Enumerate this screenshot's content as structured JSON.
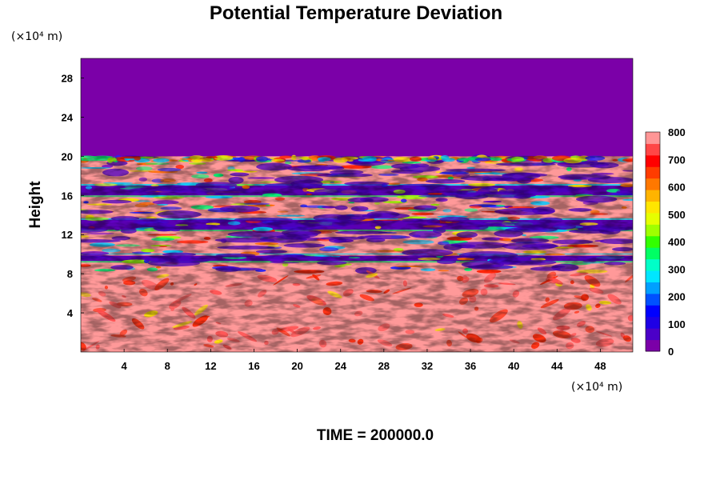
{
  "chart_data": {
    "type": "heatmap",
    "title": "Potential Temperature Deviation",
    "ylabel": "Height",
    "xlabel": "",
    "x_unit_label": "(×10⁴ m)",
    "y_unit_label": "(×10⁴ m)",
    "footer": "TIME = 200000.0",
    "xlim": [
      0,
      51
    ],
    "ylim": [
      0,
      30
    ],
    "x_ticks": [
      4,
      8,
      12,
      16,
      20,
      24,
      28,
      32,
      36,
      40,
      44,
      48
    ],
    "y_ticks": [
      4,
      8,
      12,
      16,
      20,
      24,
      28
    ],
    "colorbar": {
      "min": 0,
      "max": 800,
      "tick_values": [
        0,
        100,
        200,
        300,
        400,
        500,
        600,
        700,
        800
      ],
      "colors": [
        "#7b00a8",
        "#4b00c8",
        "#1e00e6",
        "#0000ff",
        "#0050ff",
        "#00a0ff",
        "#00e6ff",
        "#00ffc8",
        "#00ff64",
        "#32ff00",
        "#a0ff00",
        "#e6ff00",
        "#ffe600",
        "#ffb400",
        "#ff7800",
        "#ff3c00",
        "#ff0000",
        "#ff4646",
        "#ff9696"
      ]
    },
    "fields": {
      "upper_uniform_value": 0,
      "upper_uniform_color": "#7b00a8",
      "layer_top_height": 20,
      "lower_background_value": 800,
      "lower_background_color": "#ff9999",
      "purple_bands_height": [
        [
          16,
          17
        ],
        [
          12.5,
          13.5
        ],
        [
          9.3,
          9.9
        ]
      ],
      "thin_line_height": 9.9
    }
  }
}
